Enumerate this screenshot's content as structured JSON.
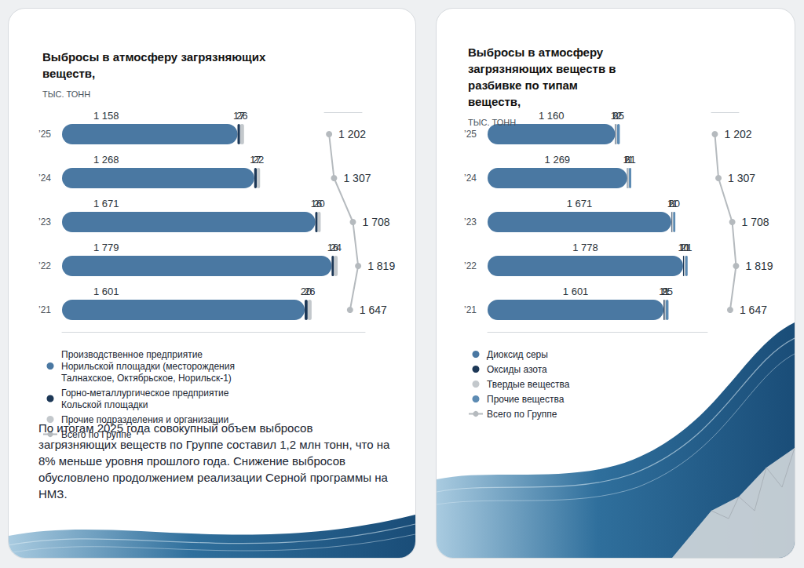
{
  "chart_data": [
    {
      "type": "bar",
      "orientation": "horizontal",
      "stacked": true,
      "data_labels": true,
      "tick_labels": "y",
      "grid": false,
      "legend": "bottom",
      "title": "Выбросы в атмосферу загрязняющих веществ,",
      "subtitle": "ТЫС. ТОНН",
      "annotations": [
        "По итогам 2025 года совокупный объем выбросов загрязняющих веществ по Группе составил 1,2 млн тонн, что на 8% меньше уровня прошлого года. Снижение выбросов обусловлено продолжением реализации Серной программы на НМЗ."
      ],
      "categories": [
        "’25",
        "’24",
        "’23",
        "’22",
        "’21"
      ],
      "xlim": [
        0,
        2000
      ],
      "x2lim": [
        1100,
        1900
      ],
      "series": [
        {
          "name": "Производственное предприятие Норильской площадки (месторождения Талнахское, Октябрьское, Норильск-1)",
          "color": "#4a78a2",
          "values": [
            1158,
            1268,
            1671,
            1779,
            1601
          ],
          "value_labels": [
            "1 158",
            "1 268",
            "1 671",
            "1 779",
            "1 601"
          ]
        },
        {
          "name": "Горно-металлургическое предприятие Кольской площадки",
          "color": "#1d3857",
          "values": [
            17,
            17,
            16,
            16,
            20
          ]
        },
        {
          "name": "Прочие подразделения и организации",
          "color": "#c3c8cc",
          "values": [
            26,
            22,
            20,
            24,
            26
          ]
        },
        {
          "name": "Всего по Группе",
          "type": "line",
          "axis": "x2",
          "marker": "circle",
          "color": "#b5babe",
          "values": [
            1202,
            1307,
            1708,
            1819,
            1647
          ],
          "value_labels": [
            "1 202",
            "1 307",
            "1 708",
            "1 819",
            "1 647"
          ]
        }
      ]
    },
    {
      "type": "bar",
      "orientation": "horizontal",
      "stacked": true,
      "data_labels": true,
      "tick_labels": "y",
      "grid": false,
      "legend": "bottom",
      "title": "Выбросы в атмосферу загрязняющих веществ в разбивке по типам веществ,",
      "subtitle": "ТЫС. ТОНН",
      "categories": [
        "’25",
        "’24",
        "’23",
        "’22",
        "’21"
      ],
      "xlim": [
        0,
        2000
      ],
      "x2lim": [
        1100,
        1900
      ],
      "series": [
        {
          "name": "Диоксид серы",
          "color": "#4a78a2",
          "values": [
            1160,
            1269,
            1671,
            1778,
            1601
          ],
          "value_labels": [
            "1 160",
            "1 269",
            "1 671",
            "1 778",
            "1 601"
          ]
        },
        {
          "name": "Оксиды азота",
          "color": "#1d3857",
          "values": [
            6,
            6,
            6,
            10,
            11
          ]
        },
        {
          "name": "Твердые вещества",
          "color": "#c3c8cc",
          "values": [
            12,
            11,
            11,
            11,
            9
          ]
        },
        {
          "name": "Прочие вещества",
          "color": "#5d8bb3",
          "values": [
            25,
            21,
            20,
            21,
            25
          ]
        },
        {
          "name": "Всего по Группе",
          "type": "line",
          "axis": "x2",
          "marker": "circle",
          "color": "#b5babe",
          "values": [
            1202,
            1307,
            1708,
            1819,
            1647
          ],
          "value_labels": [
            "1 202",
            "1 307",
            "1 708",
            "1 819",
            "1 647"
          ]
        }
      ]
    }
  ]
}
